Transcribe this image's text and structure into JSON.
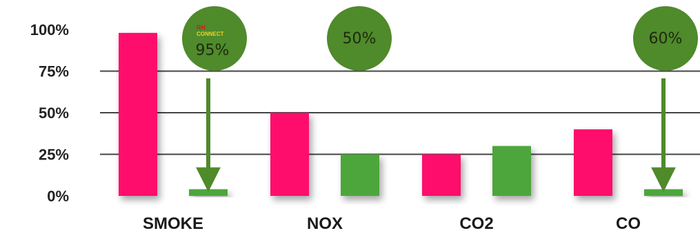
{
  "chart_data": {
    "type": "bar",
    "categories": [
      "SMOKE",
      "NOX",
      "CO2",
      "CO"
    ],
    "series": [
      {
        "values": [
          98,
          50,
          25,
          40
        ],
        "color": "#ff0a6c"
      },
      {
        "values": [
          4,
          25,
          30,
          4
        ],
        "color": "#4ea63a"
      }
    ],
    "ylim": [
      0,
      100
    ],
    "yticks": [
      "0%",
      "25%",
      "50%",
      "75%",
      "100%"
    ],
    "grid": true,
    "annotations": [
      {
        "category": "SMOKE",
        "text": "95%",
        "logo": {
          "top": "RH",
          "bottom": "CONNECT"
        },
        "arrow_to_series": 2
      },
      {
        "category": "NOX",
        "text": "50%"
      },
      {
        "category": "CO",
        "text": "60%",
        "arrow_to_series": 2
      }
    ],
    "annotation_color": "#4f8a2b",
    "arrow_color": "#4f8a2b"
  }
}
